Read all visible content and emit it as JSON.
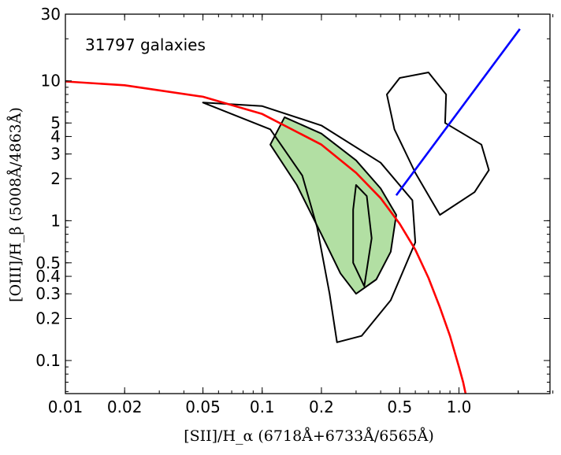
{
  "chart_data": {
    "type": "scatter",
    "annotation": "31797 galaxies",
    "xlabel": "[SII]/H_α (6718Å+6733Å/6565Å)",
    "ylabel": "[OIII]/H_β (5008Å/4863Å)",
    "x_scale": "log",
    "y_scale": "log",
    "xlim": [
      0.01,
      2.9
    ],
    "ylim": [
      0.058,
      30
    ],
    "x_ticks": [
      0.01,
      0.02,
      0.05,
      0.1,
      0.2,
      0.5,
      1.0
    ],
    "x_tick_labels": [
      "0.01",
      "0.02",
      "0.05",
      "0.1",
      "0.2",
      "0.5",
      "1.0"
    ],
    "y_ticks": [
      0.1,
      0.2,
      0.3,
      0.4,
      0.5,
      1,
      2,
      3,
      4,
      5,
      10,
      30
    ],
    "y_tick_labels": [
      "0.1",
      "0.2",
      "0.3",
      "0.4",
      "0.5",
      "1",
      "2",
      "3",
      "4",
      "5",
      "10",
      "30"
    ],
    "grid": false,
    "colors": {
      "star_forming": "#b2dfa3",
      "seyfert": "#ffa07a",
      "liner": "#a9cde8",
      "contour": "#000000",
      "kewley_line": "#ff0000",
      "liner_line": "#0000ff"
    },
    "series": [
      {
        "name": "",
        "type": "curve",
        "color": "#ff0000",
        "points": [
          [
            0.01,
            9.9
          ],
          [
            0.02,
            9.3
          ],
          [
            0.05,
            7.7
          ],
          [
            0.1,
            5.8
          ],
          [
            0.2,
            3.5
          ],
          [
            0.3,
            2.2
          ],
          [
            0.4,
            1.45
          ],
          [
            0.5,
            0.95
          ],
          [
            0.6,
            0.62
          ],
          [
            0.7,
            0.39
          ],
          [
            0.8,
            0.24
          ],
          [
            0.9,
            0.15
          ],
          [
            1.0,
            0.09
          ],
          [
            1.05,
            0.07
          ],
          [
            1.08,
            0.058
          ]
        ]
      },
      {
        "name": "",
        "type": "line",
        "color": "#0000ff",
        "points": [
          [
            0.48,
            1.52
          ],
          [
            2.04,
            23.5
          ]
        ]
      }
    ],
    "contours": [
      {
        "fill": "#b2dfa3",
        "points": [
          [
            0.13,
            5.5
          ],
          [
            0.2,
            4.2
          ],
          [
            0.3,
            2.7
          ],
          [
            0.4,
            1.7
          ],
          [
            0.48,
            1.1
          ],
          [
            0.45,
            0.6
          ],
          [
            0.38,
            0.38
          ],
          [
            0.3,
            0.3
          ],
          [
            0.25,
            0.42
          ],
          [
            0.2,
            0.8
          ],
          [
            0.15,
            1.8
          ],
          [
            0.11,
            3.5
          ]
        ]
      },
      {
        "fill": "none",
        "points": [
          [
            0.05,
            7.0
          ],
          [
            0.1,
            6.6
          ],
          [
            0.2,
            4.8
          ],
          [
            0.4,
            2.6
          ],
          [
            0.58,
            1.4
          ],
          [
            0.6,
            0.7
          ],
          [
            0.45,
            0.27
          ],
          [
            0.32,
            0.15
          ],
          [
            0.24,
            0.135
          ],
          [
            0.22,
            0.3
          ],
          [
            0.19,
            0.9
          ],
          [
            0.16,
            2.1
          ],
          [
            0.11,
            4.5
          ]
        ]
      },
      {
        "fill": "none",
        "points": [
          [
            0.3,
            1.8
          ],
          [
            0.34,
            1.5
          ],
          [
            0.36,
            0.75
          ],
          [
            0.33,
            0.34
          ],
          [
            0.29,
            0.5
          ],
          [
            0.29,
            1.2
          ]
        ]
      },
      {
        "fill": "none",
        "points": [
          [
            0.5,
            10.5
          ],
          [
            0.7,
            11.5
          ],
          [
            0.86,
            8.0
          ],
          [
            0.85,
            5.0
          ],
          [
            1.3,
            3.5
          ],
          [
            1.42,
            2.3
          ],
          [
            1.2,
            1.6
          ],
          [
            0.8,
            1.1
          ],
          [
            0.6,
            2.2
          ],
          [
            0.47,
            4.5
          ],
          [
            0.43,
            8.0
          ]
        ]
      }
    ]
  }
}
